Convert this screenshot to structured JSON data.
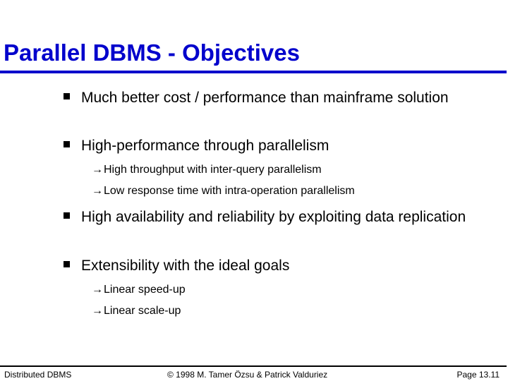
{
  "slide": {
    "title": "Parallel DBMS - Objectives"
  },
  "bullets": [
    {
      "text": "Much better cost / performance than mainframe solution",
      "subitems": []
    },
    {
      "text": "High-performance through parallelism",
      "subitems": [
        "High throughput with inter-query parallelism",
        "Low response time with intra-operation parallelism"
      ]
    },
    {
      "text": "High availability and reliability by exploiting data replication",
      "subitems": []
    },
    {
      "text": "Extensibility with the ideal goals",
      "subitems": [
        "Linear speed-up",
        "Linear scale-up"
      ]
    }
  ],
  "icons": {
    "bullet_marker": "square-bullet-icon",
    "sub_marker": "right-arrow-icon",
    "arrow_glyph": "→"
  },
  "footer": {
    "left": "Distributed DBMS",
    "center": "© 1998 M. Tamer Özsu & Patrick Valduriez",
    "right": "Page 13.11"
  },
  "colors": {
    "title": "#0000cc",
    "text": "#000000",
    "background": "#ffffff"
  }
}
